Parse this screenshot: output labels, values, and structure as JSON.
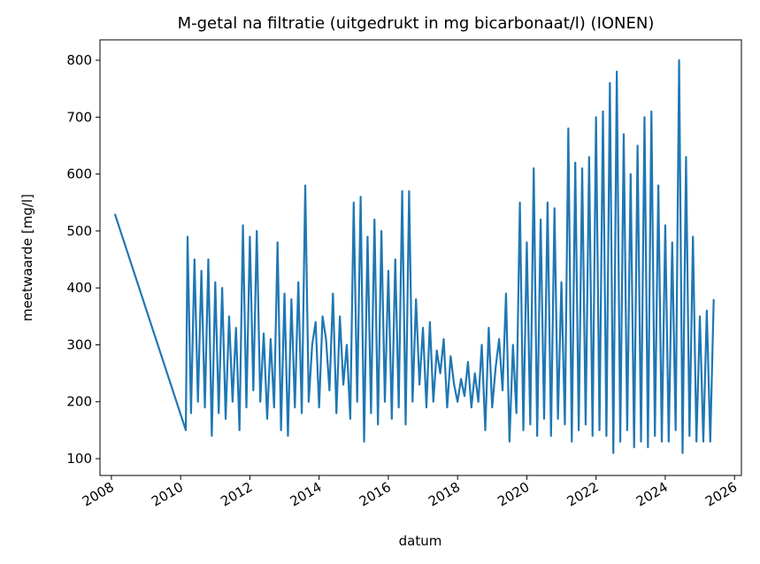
{
  "chart_data": {
    "type": "line",
    "title": "M-getal na filtratie (uitgedrukt in mg bicarbonaat/l) (IONEN)",
    "xlabel": "datum",
    "ylabel": "meetwaarde [mg/l]",
    "color": "#1f77b4",
    "x": [
      2008.1,
      2010.15,
      2010.2,
      2010.3,
      2010.4,
      2010.5,
      2010.6,
      2010.7,
      2010.8,
      2010.9,
      2011.0,
      2011.1,
      2011.2,
      2011.3,
      2011.4,
      2011.5,
      2011.6,
      2011.7,
      2011.8,
      2011.9,
      2012.0,
      2012.1,
      2012.2,
      2012.3,
      2012.4,
      2012.5,
      2012.6,
      2012.7,
      2012.8,
      2012.9,
      2013.0,
      2013.1,
      2013.2,
      2013.3,
      2013.4,
      2013.5,
      2013.6,
      2013.7,
      2013.8,
      2013.9,
      2014.0,
      2014.1,
      2014.2,
      2014.3,
      2014.4,
      2014.5,
      2014.6,
      2014.7,
      2014.8,
      2014.9,
      2015.0,
      2015.1,
      2015.2,
      2015.3,
      2015.4,
      2015.5,
      2015.6,
      2015.7,
      2015.8,
      2015.9,
      2016.0,
      2016.1,
      2016.2,
      2016.3,
      2016.4,
      2016.5,
      2016.6,
      2016.7,
      2016.8,
      2016.9,
      2017.0,
      2017.1,
      2017.2,
      2017.3,
      2017.4,
      2017.5,
      2017.6,
      2017.7,
      2017.8,
      2017.9,
      2018.0,
      2018.1,
      2018.2,
      2018.3,
      2018.4,
      2018.5,
      2018.6,
      2018.7,
      2018.8,
      2018.9,
      2019.0,
      2019.1,
      2019.2,
      2019.3,
      2019.4,
      2019.5,
      2019.6,
      2019.7,
      2019.8,
      2019.9,
      2020.0,
      2020.1,
      2020.2,
      2020.3,
      2020.4,
      2020.5,
      2020.6,
      2020.7,
      2020.8,
      2020.9,
      2021.0,
      2021.1,
      2021.2,
      2021.3,
      2021.4,
      2021.5,
      2021.6,
      2021.7,
      2021.8,
      2021.9,
      2022.0,
      2022.1,
      2022.2,
      2022.3,
      2022.4,
      2022.5,
      2022.6,
      2022.7,
      2022.8,
      2022.9,
      2023.0,
      2023.1,
      2023.2,
      2023.3,
      2023.4,
      2023.5,
      2023.6,
      2023.7,
      2023.8,
      2023.9,
      2024.0,
      2024.1,
      2024.2,
      2024.3,
      2024.4,
      2024.5,
      2024.6,
      2024.7,
      2024.8,
      2024.9,
      2025.0,
      2025.1,
      2025.2,
      2025.3,
      2025.4
    ],
    "values": [
      530,
      150,
      490,
      180,
      450,
      200,
      430,
      190,
      450,
      140,
      410,
      180,
      400,
      170,
      350,
      200,
      330,
      150,
      510,
      190,
      490,
      220,
      500,
      200,
      320,
      170,
      310,
      190,
      480,
      150,
      390,
      140,
      380,
      190,
      410,
      180,
      580,
      200,
      300,
      340,
      190,
      350,
      310,
      220,
      390,
      180,
      350,
      230,
      300,
      170,
      550,
      200,
      560,
      130,
      490,
      180,
      520,
      160,
      500,
      200,
      430,
      170,
      450,
      190,
      570,
      160,
      570,
      200,
      380,
      230,
      330,
      190,
      340,
      200,
      290,
      250,
      310,
      190,
      280,
      230,
      200,
      240,
      210,
      270,
      190,
      250,
      200,
      300,
      150,
      330,
      190,
      260,
      310,
      220,
      390,
      130,
      300,
      180,
      550,
      150,
      480,
      160,
      610,
      140,
      520,
      170,
      550,
      140,
      540,
      170,
      410,
      160,
      680,
      130,
      620,
      150,
      610,
      160,
      630,
      140,
      700,
      150,
      710,
      140,
      760,
      110,
      780,
      130,
      670,
      150,
      600,
      120,
      650,
      130,
      700,
      120,
      710,
      140,
      580,
      130,
      510,
      130,
      480,
      150,
      800,
      110,
      630,
      140,
      490,
      130,
      350,
      130,
      360,
      130,
      380
    ],
    "xlim": [
      2007.67,
      2026.2
    ],
    "xticks": [
      2008,
      2010,
      2012,
      2014,
      2016,
      2018,
      2020,
      2022,
      2024,
      2026
    ],
    "ylim": [
      70.5,
      835.8
    ],
    "yticks": [
      100,
      200,
      300,
      400,
      500,
      600,
      700,
      800
    ]
  }
}
